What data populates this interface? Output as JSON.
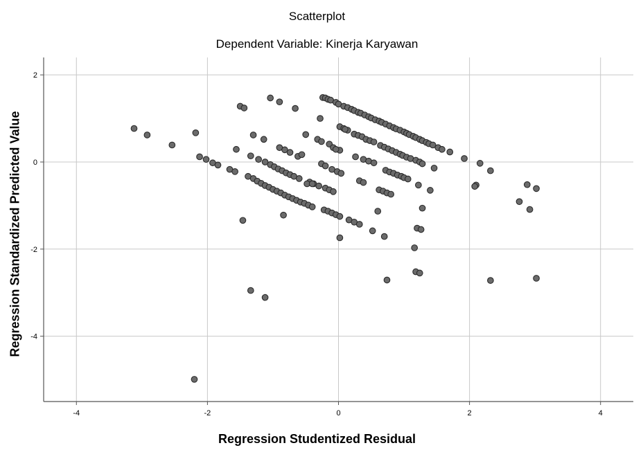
{
  "chart_data": {
    "type": "scatter",
    "title": "Scatterplot",
    "subtitle": "Dependent Variable: Kinerja Karyawan",
    "xlabel": "Regression Studentized Residual",
    "ylabel": "Regression Standardized Predicted Value",
    "xlim": [
      -4.5,
      4.5
    ],
    "ylim": [
      -5.5,
      2.4
    ],
    "x_ticks": [
      -4,
      -2,
      0,
      2,
      4
    ],
    "x_tick_labels": [
      "-4",
      "-2",
      "0",
      "2",
      "4"
    ],
    "y_ticks": [
      -4,
      -2,
      0,
      2
    ],
    "y_tick_labels": [
      "-4",
      "-2",
      "0",
      "2"
    ],
    "grid": true,
    "colors": {
      "point_fill": "#6b6b6b",
      "point_stroke": "#2a2a2a",
      "grid": "#c8c8c8",
      "axis": "#555555"
    },
    "points": [
      [
        -3.12,
        0.77
      ],
      [
        -2.92,
        0.62
      ],
      [
        -2.54,
        0.39
      ],
      [
        -2.18,
        0.67
      ],
      [
        -2.12,
        0.12
      ],
      [
        -2.02,
        0.06
      ],
      [
        -1.92,
        -0.02
      ],
      [
        -1.84,
        -0.07
      ],
      [
        -1.66,
        -0.17
      ],
      [
        -1.58,
        -0.22
      ],
      [
        -1.56,
        0.29
      ],
      [
        -1.5,
        1.28
      ],
      [
        -1.44,
        1.24
      ],
      [
        -1.38,
        -0.33
      ],
      [
        -1.3,
        -0.38
      ],
      [
        -1.24,
        -0.44
      ],
      [
        -1.18,
        -0.49
      ],
      [
        -1.12,
        -0.54
      ],
      [
        -1.06,
        -0.58
      ],
      [
        -1.0,
        -0.63
      ],
      [
        -0.94,
        -0.67
      ],
      [
        -0.88,
        -0.71
      ],
      [
        -0.82,
        -0.76
      ],
      [
        -0.76,
        -0.8
      ],
      [
        -0.7,
        -0.84
      ],
      [
        -0.64,
        -0.88
      ],
      [
        -0.58,
        -0.92
      ],
      [
        -0.52,
        -0.95
      ],
      [
        -0.46,
        -0.99
      ],
      [
        -0.4,
        -1.03
      ],
      [
        -1.34,
        0.14
      ],
      [
        -1.22,
        0.06
      ],
      [
        -1.12,
        0.0
      ],
      [
        -1.04,
        -0.06
      ],
      [
        -0.98,
        -0.11
      ],
      [
        -0.92,
        -0.16
      ],
      [
        -0.86,
        -0.2
      ],
      [
        -0.8,
        -0.25
      ],
      [
        -0.74,
        -0.29
      ],
      [
        -0.68,
        -0.33
      ],
      [
        -0.6,
        -0.38
      ],
      [
        -0.44,
        -0.46
      ],
      [
        -0.38,
        -0.5
      ],
      [
        -0.3,
        -0.55
      ],
      [
        -0.2,
        -0.6
      ],
      [
        -0.14,
        -0.64
      ],
      [
        -0.08,
        -0.68
      ],
      [
        -1.3,
        0.62
      ],
      [
        -1.14,
        0.52
      ],
      [
        -0.9,
        0.33
      ],
      [
        -0.82,
        0.28
      ],
      [
        -0.74,
        0.22
      ],
      [
        -0.62,
        0.13
      ],
      [
        -1.04,
        1.47
      ],
      [
        -0.9,
        1.38
      ],
      [
        -0.66,
        1.23
      ],
      [
        -0.5,
        0.63
      ],
      [
        -0.32,
        0.52
      ],
      [
        -0.26,
        0.47
      ],
      [
        -0.14,
        0.41
      ],
      [
        -0.08,
        0.33
      ],
      [
        0.02,
        0.27
      ],
      [
        -0.26,
        -0.04
      ],
      [
        -0.2,
        -0.09
      ],
      [
        -0.1,
        -0.17
      ],
      [
        -0.02,
        -0.22
      ],
      [
        0.04,
        -0.26
      ],
      [
        -0.22,
        -1.1
      ],
      [
        -0.16,
        -1.13
      ],
      [
        -0.1,
        -1.17
      ],
      [
        -0.04,
        -1.21
      ],
      [
        0.02,
        -1.25
      ],
      [
        0.16,
        -1.33
      ],
      [
        0.24,
        -1.38
      ],
      [
        0.32,
        -1.43
      ],
      [
        0.02,
        -1.74
      ],
      [
        -0.28,
        1.0
      ],
      [
        -0.24,
        1.48
      ],
      [
        -0.2,
        1.47
      ],
      [
        -0.16,
        1.44
      ],
      [
        -0.12,
        1.42
      ],
      [
        -0.04,
        1.37
      ],
      [
        0.0,
        1.33
      ],
      [
        0.08,
        1.28
      ],
      [
        0.14,
        1.25
      ],
      [
        0.2,
        1.21
      ],
      [
        0.24,
        1.18
      ],
      [
        0.3,
        1.14
      ],
      [
        0.34,
        1.12
      ],
      [
        0.4,
        1.08
      ],
      [
        0.46,
        1.04
      ],
      [
        0.5,
        1.01
      ],
      [
        0.56,
        0.97
      ],
      [
        0.62,
        0.94
      ],
      [
        0.66,
        0.91
      ],
      [
        0.72,
        0.87
      ],
      [
        0.78,
        0.83
      ],
      [
        0.84,
        0.79
      ],
      [
        0.88,
        0.76
      ],
      [
        0.94,
        0.73
      ],
      [
        1.0,
        0.69
      ],
      [
        1.04,
        0.66
      ],
      [
        1.08,
        0.63
      ],
      [
        1.14,
        0.59
      ],
      [
        1.18,
        0.56
      ],
      [
        1.24,
        0.52
      ],
      [
        1.28,
        0.49
      ],
      [
        1.34,
        0.45
      ],
      [
        1.38,
        0.42
      ],
      [
        1.44,
        0.39
      ],
      [
        1.52,
        0.33
      ],
      [
        1.58,
        0.29
      ],
      [
        1.7,
        0.23
      ],
      [
        1.92,
        0.08
      ],
      [
        2.16,
        -0.03
      ],
      [
        2.32,
        -0.2
      ],
      [
        0.02,
        0.81
      ],
      [
        0.08,
        0.77
      ],
      [
        0.14,
        0.73
      ],
      [
        0.24,
        0.64
      ],
      [
        0.3,
        0.61
      ],
      [
        0.36,
        0.58
      ],
      [
        0.42,
        0.52
      ],
      [
        0.48,
        0.49
      ],
      [
        0.54,
        0.46
      ],
      [
        0.64,
        0.38
      ],
      [
        0.7,
        0.34
      ],
      [
        0.76,
        0.3
      ],
      [
        0.82,
        0.26
      ],
      [
        0.88,
        0.22
      ],
      [
        0.94,
        0.18
      ],
      [
        0.98,
        0.15
      ],
      [
        1.04,
        0.11
      ],
      [
        1.1,
        0.08
      ],
      [
        1.18,
        0.04
      ],
      [
        1.24,
        0.0
      ],
      [
        1.28,
        -0.04
      ],
      [
        1.46,
        -0.14
      ],
      [
        0.26,
        0.12
      ],
      [
        0.38,
        0.06
      ],
      [
        0.46,
        0.02
      ],
      [
        0.54,
        -0.02
      ],
      [
        0.72,
        -0.19
      ],
      [
        0.78,
        -0.23
      ],
      [
        0.84,
        -0.26
      ],
      [
        0.9,
        -0.3
      ],
      [
        0.96,
        -0.33
      ],
      [
        1.0,
        -0.36
      ],
      [
        1.06,
        -0.39
      ],
      [
        1.22,
        -0.53
      ],
      [
        1.4,
        -0.65
      ],
      [
        0.32,
        -0.43
      ],
      [
        0.38,
        -0.47
      ],
      [
        0.62,
        -0.64
      ],
      [
        0.68,
        -0.67
      ],
      [
        0.74,
        -0.71
      ],
      [
        0.8,
        -0.74
      ],
      [
        0.6,
        -1.13
      ],
      [
        0.52,
        -1.58
      ],
      [
        0.7,
        -1.71
      ],
      [
        1.2,
        -1.52
      ],
      [
        1.26,
        -1.55
      ],
      [
        1.28,
        -1.06
      ],
      [
        1.16,
        -1.97
      ],
      [
        1.18,
        -2.52
      ],
      [
        1.24,
        -2.55
      ],
      [
        0.74,
        -2.71
      ],
      [
        2.1,
        -0.53
      ],
      [
        2.08,
        -0.56
      ],
      [
        2.76,
        -0.91
      ],
      [
        2.88,
        -0.52
      ],
      [
        2.92,
        -1.09
      ],
      [
        3.02,
        -0.61
      ],
      [
        3.02,
        -2.67
      ],
      [
        2.32,
        -2.72
      ],
      [
        -1.46,
        -1.34
      ],
      [
        -0.84,
        -1.22
      ],
      [
        -1.34,
        -2.95
      ],
      [
        -1.12,
        -3.11
      ],
      [
        -2.2,
        -4.99
      ],
      [
        -0.56,
        0.17
      ],
      [
        -0.48,
        -0.5
      ],
      [
        -0.4,
        -0.5
      ],
      [
        0.1,
        0.75
      ],
      [
        -0.04,
        0.29
      ]
    ]
  }
}
